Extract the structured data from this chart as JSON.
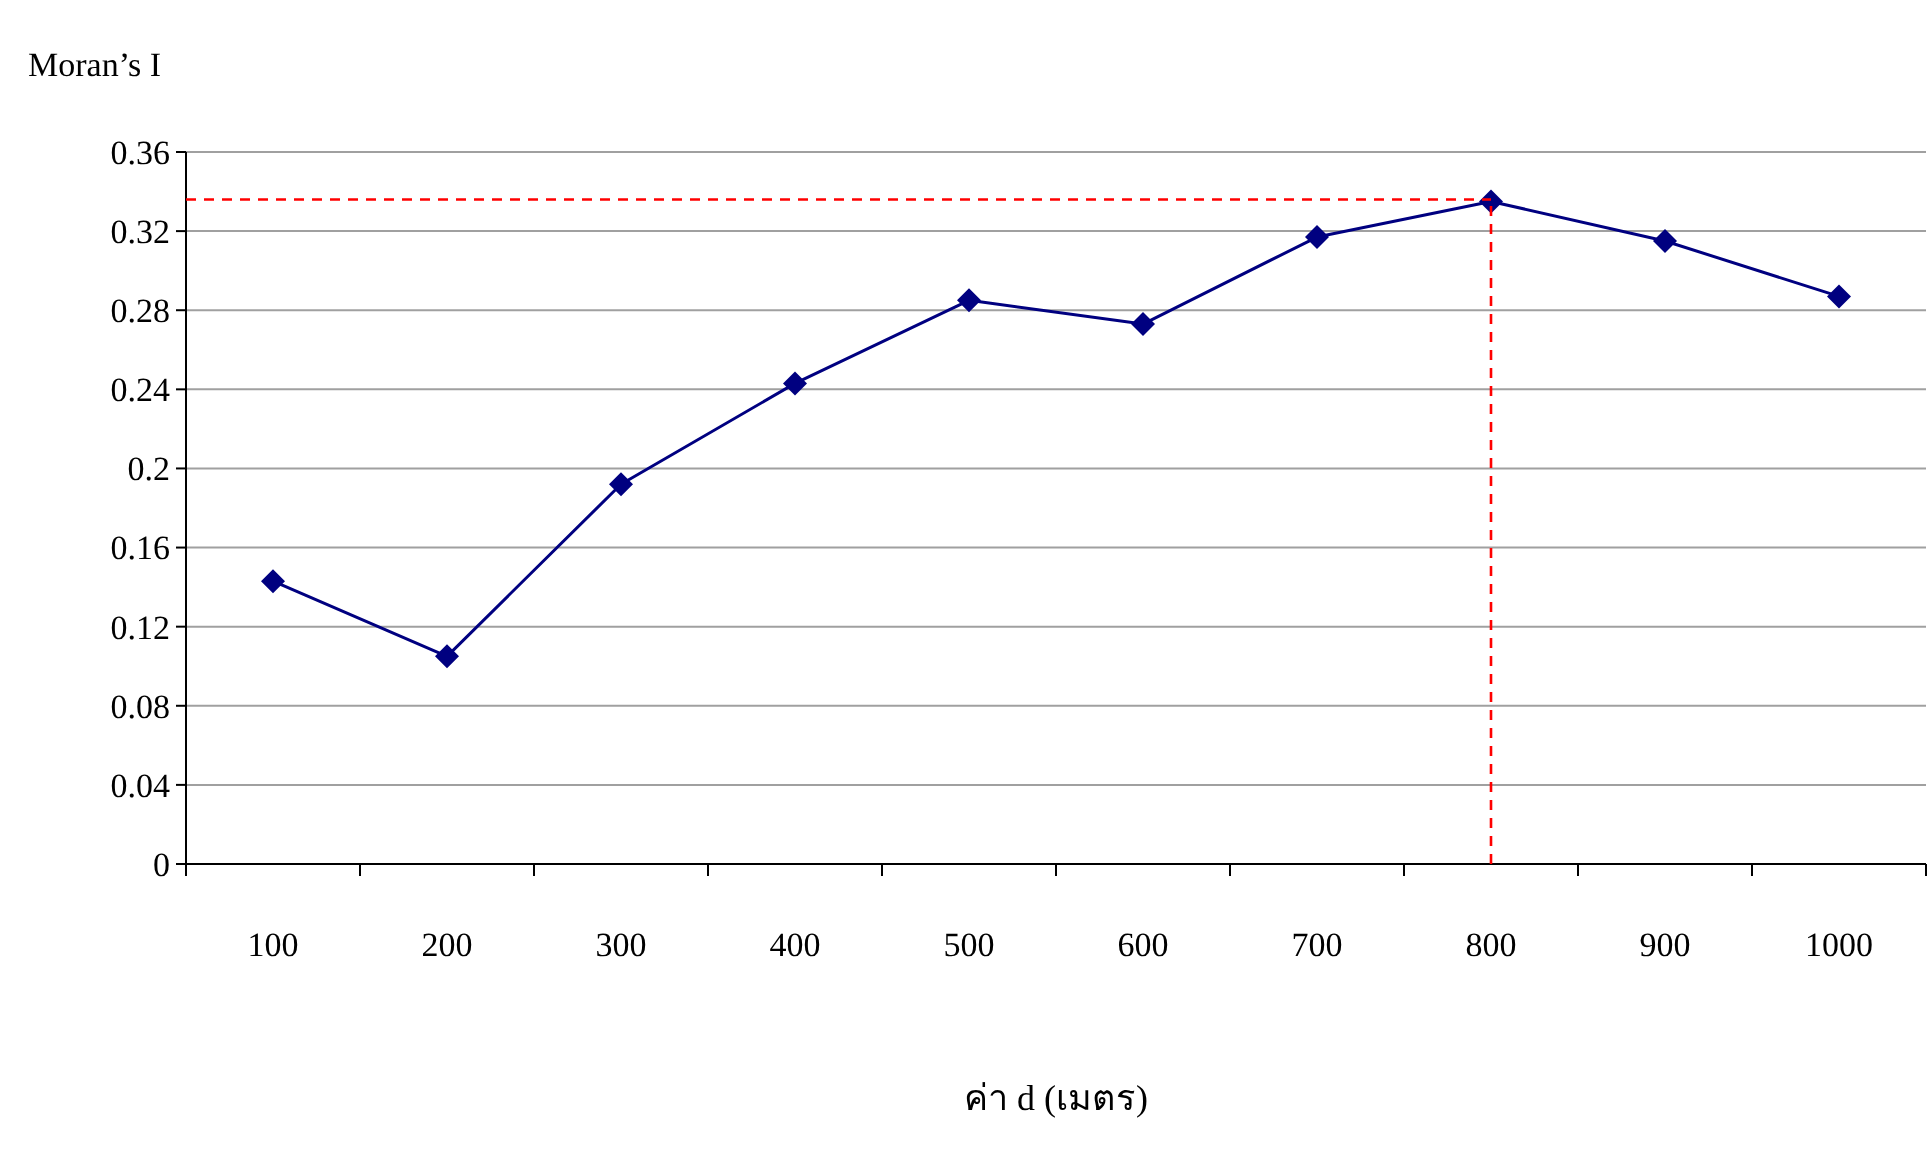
{
  "chart_data": {
    "type": "line",
    "xlabel": "ค่า d  (เมตร)",
    "ylabel": "Moran’s I",
    "categories": [
      "100",
      "200",
      "300",
      "400",
      "500",
      "600",
      "700",
      "800",
      "900",
      "1000"
    ],
    "series": [
      {
        "color": "#000080",
        "values": [
          0.143,
          0.105,
          0.192,
          0.243,
          0.285,
          0.273,
          0.317,
          0.335,
          0.315,
          0.287
        ]
      }
    ],
    "ylim": [
      0,
      0.36
    ],
    "yticks": [
      0,
      0.04,
      0.08,
      0.12,
      0.16,
      0.2,
      0.24,
      0.28,
      0.32,
      0.36
    ],
    "grid": "y",
    "marker": "diamond",
    "line_style": "solid",
    "ref_lines": [
      {
        "axis": "y",
        "value": 0.336,
        "color": "#ff0000",
        "line_style": "dashed"
      },
      {
        "axis": "x",
        "value": "800",
        "color": "#ff0000",
        "line_style": "dashed"
      }
    ]
  }
}
